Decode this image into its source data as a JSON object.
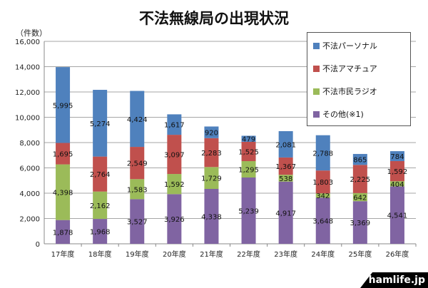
{
  "chart_data": {
    "type": "bar",
    "stacked": true,
    "title": "不法無線局の出現状況",
    "ylabel": "（件数）",
    "ylim": [
      0,
      16000
    ],
    "yticks": [
      "0",
      "2,000",
      "4,000",
      "6,000",
      "8,000",
      "10,000",
      "12,000",
      "14,000",
      "16,000"
    ],
    "grid": true,
    "legend_position": "right-top",
    "categories": [
      "17年度",
      "18年度",
      "19年度",
      "20年度",
      "21年度",
      "22年度",
      "23年度",
      "24年度",
      "25年度",
      "26年度"
    ],
    "series": [
      {
        "name": "その他(※1)",
        "color": "#8064a2",
        "values": [
          1878,
          1968,
          3527,
          3926,
          4338,
          5239,
          4917,
          3648,
          3369,
          4541
        ],
        "labels": [
          "1,878",
          "1,968",
          "3,527",
          "3,926",
          "4,338",
          "5,239",
          "4,917",
          "3,648",
          "3,369",
          "4,541"
        ]
      },
      {
        "name": "不法市民ラジオ",
        "color": "#9bbb59",
        "values": [
          4398,
          2162,
          1583,
          1592,
          1729,
          1295,
          538,
          342,
          642,
          404
        ],
        "labels": [
          "4,398",
          "2,162",
          "1,583",
          "1,592",
          "1,729",
          "1,295",
          "538",
          "342",
          "642",
          "404"
        ]
      },
      {
        "name": "不法アマチュア",
        "color": "#c0504d",
        "values": [
          1695,
          2764,
          2549,
          3097,
          2283,
          1525,
          1367,
          1803,
          2225,
          1592
        ],
        "labels": [
          "1,695",
          "2,764",
          "2,549",
          "3,097",
          "2,283",
          "1,525",
          "1,367",
          "1,803",
          "2,225",
          "1,592"
        ]
      },
      {
        "name": "不法パーソナル",
        "color": "#4f81bd",
        "values": [
          5995,
          5274,
          4424,
          1617,
          920,
          479,
          2081,
          2788,
          865,
          784
        ],
        "labels": [
          "5,995",
          "5,274",
          "4,424",
          "1,617",
          "920",
          "479",
          "2,081",
          "2,788",
          "865",
          "784"
        ]
      }
    ],
    "legend_order": [
      3,
      2,
      1,
      0
    ]
  },
  "watermark": "hamlife.jp"
}
